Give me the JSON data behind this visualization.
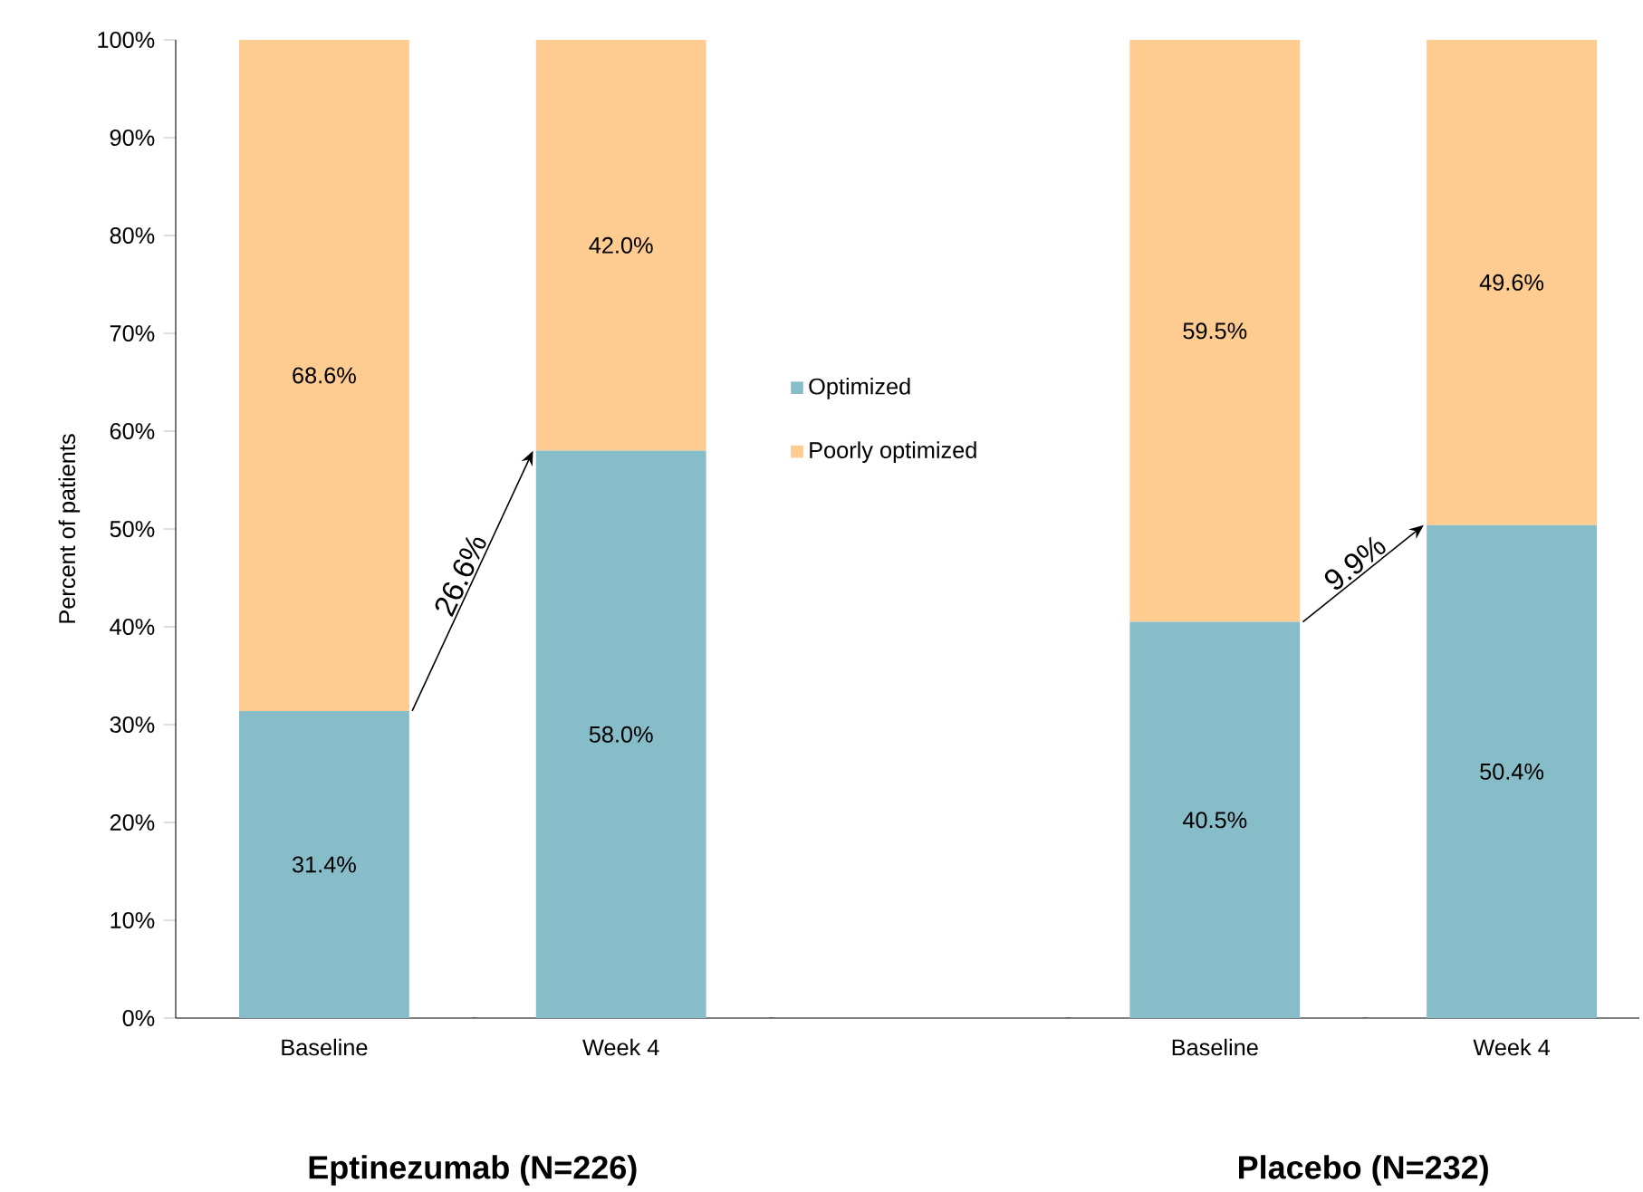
{
  "chart_data": {
    "type": "bar",
    "stacked": true,
    "ylabel": "Percent of patients",
    "categories": [
      "Baseline",
      "Week 4",
      null,
      "Baseline",
      "Week 4"
    ],
    "series": [
      {
        "name": "Optimized",
        "color": "#87bdc8",
        "values": [
          31.4,
          58.0,
          null,
          40.5,
          50.4
        ],
        "value_labels": [
          "31.4%",
          "58.0%",
          null,
          "40.5%",
          "50.4%"
        ]
      },
      {
        "name": "Poorly optimized",
        "color": "#fecb91",
        "values": [
          68.6,
          42.0,
          null,
          59.5,
          49.6
        ],
        "value_labels": [
          "68.6%",
          "42.0%",
          null,
          "59.5%",
          "49.6%"
        ]
      }
    ],
    "ylim": [
      0,
      100
    ],
    "yticks": [
      {
        "value": 0,
        "label": "0%"
      },
      {
        "value": 10,
        "label": "10%"
      },
      {
        "value": 20,
        "label": "20%"
      },
      {
        "value": 30,
        "label": "30%"
      },
      {
        "value": 40,
        "label": "40%"
      },
      {
        "value": 50,
        "label": "50%"
      },
      {
        "value": 60,
        "label": "60%"
      },
      {
        "value": 70,
        "label": "70%"
      },
      {
        "value": 80,
        "label": "80%"
      },
      {
        "value": 90,
        "label": "90%"
      },
      {
        "value": 100,
        "label": "100%"
      }
    ],
    "grid": false,
    "legend": "center",
    "annotations": [
      "26.6%",
      "9.9%",
      "Eptinezumab (N=226)",
      "Placebo (N=232)"
    ]
  }
}
